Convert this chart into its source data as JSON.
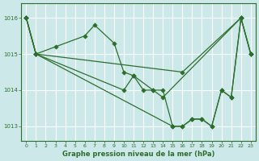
{
  "title": "Graphe pression niveau de la mer (hPa)",
  "bg_color": "#cce8e8",
  "plot_bg_color": "#cce8e8",
  "grid_color": "#ffffff",
  "line_color": "#2d6e2d",
  "marker_color": "#2d6e2d",
  "xlim": [
    -0.5,
    23.5
  ],
  "ylim": [
    1012.6,
    1016.4
  ],
  "yticks": [
    1013,
    1014,
    1015,
    1016
  ],
  "xticks": [
    0,
    1,
    2,
    3,
    4,
    5,
    6,
    7,
    8,
    9,
    10,
    11,
    12,
    13,
    14,
    15,
    16,
    17,
    18,
    19,
    20,
    21,
    22,
    23
  ],
  "series": [
    {
      "x": [
        0,
        1,
        3,
        6,
        7,
        9,
        10,
        11,
        13,
        14,
        22,
        23
      ],
      "y": [
        1016.0,
        1015.0,
        1015.2,
        1015.5,
        1015.8,
        1015.3,
        1014.5,
        1014.4,
        1014.0,
        1013.8,
        1016.0,
        1015.0
      ]
    },
    {
      "x": [
        0,
        1,
        10,
        11,
        12,
        13,
        14,
        15,
        16,
        17,
        18,
        19,
        20,
        21,
        22,
        23
      ],
      "y": [
        1016.0,
        1015.0,
        1014.0,
        1014.4,
        1014.0,
        1014.0,
        1014.0,
        1013.0,
        1013.0,
        1013.2,
        1013.2,
        1013.0,
        1014.0,
        1013.8,
        1016.0,
        1015.0
      ]
    },
    {
      "x": [
        0,
        1,
        16,
        22
      ],
      "y": [
        1016.0,
        1015.0,
        1014.5,
        1016.0
      ]
    },
    {
      "x": [
        0,
        1,
        15,
        16,
        17,
        18,
        19,
        20,
        21,
        22,
        23
      ],
      "y": [
        1016.0,
        1015.0,
        1013.0,
        1013.0,
        1013.2,
        1013.2,
        1013.0,
        1014.0,
        1013.8,
        1016.0,
        1015.0
      ]
    }
  ]
}
